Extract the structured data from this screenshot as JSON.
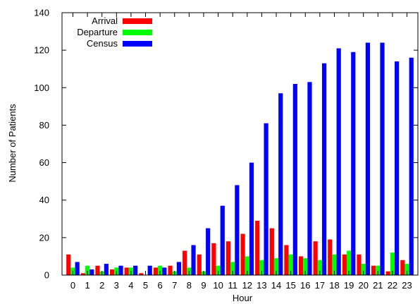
{
  "chart_data": {
    "type": "bar",
    "xlabel": "Hour",
    "ylabel": "Number of Patients",
    "ylim": [
      0,
      140
    ],
    "yticks": [
      0,
      20,
      40,
      60,
      80,
      100,
      120,
      140
    ],
    "grid": false,
    "legend_position": "top-left",
    "categories": [
      "0",
      "1",
      "2",
      "3",
      "4",
      "5",
      "6",
      "7",
      "8",
      "9",
      "10",
      "11",
      "12",
      "13",
      "14",
      "15",
      "16",
      "17",
      "18",
      "19",
      "20",
      "21",
      "22",
      "23"
    ],
    "series": [
      {
        "name": "Arrival",
        "color": "#ff0000",
        "values": [
          11,
          1,
          5,
          3,
          4,
          1,
          4,
          5,
          13,
          11,
          17,
          18,
          22,
          29,
          25,
          16,
          10,
          18,
          19,
          11,
          11,
          5,
          2,
          8
        ]
      },
      {
        "name": "Departure",
        "color": "#00ff00",
        "values": [
          4,
          5,
          2,
          4,
          4,
          0,
          5,
          2,
          4,
          2,
          5,
          7,
          10,
          8,
          9,
          11,
          9,
          8,
          11,
          13,
          6,
          5,
          12,
          6
        ]
      },
      {
        "name": "Census",
        "color": "#0000ff",
        "values": [
          7,
          3,
          6,
          5,
          5,
          5,
          4,
          7,
          16,
          25,
          37,
          48,
          60,
          81,
          97,
          102,
          103,
          113,
          121,
          119,
          124,
          124,
          114,
          116
        ]
      }
    ]
  }
}
